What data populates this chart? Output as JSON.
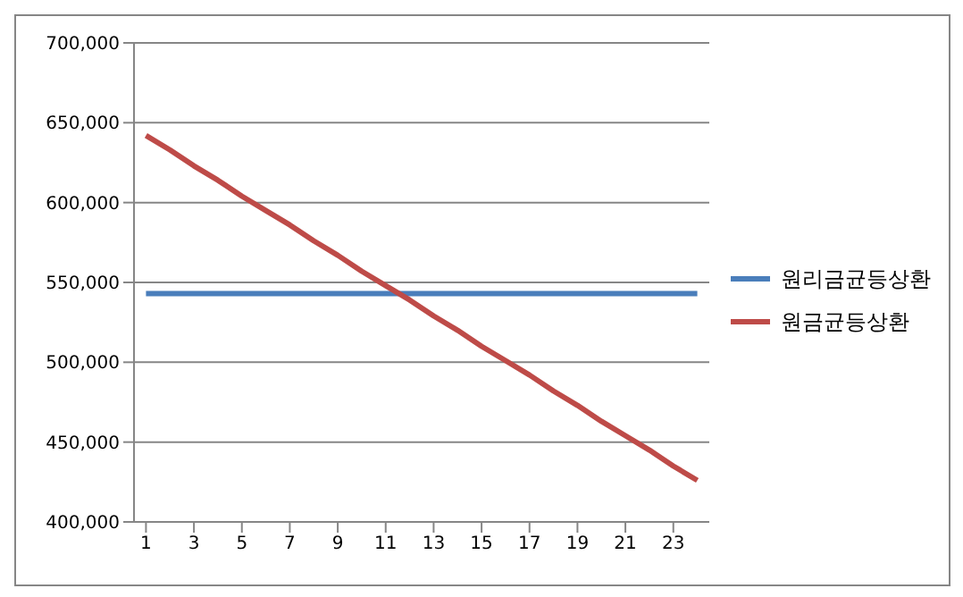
{
  "chart_data": {
    "type": "line",
    "x": [
      1,
      2,
      3,
      4,
      5,
      6,
      7,
      8,
      9,
      10,
      11,
      12,
      13,
      14,
      15,
      16,
      17,
      18,
      19,
      20,
      21,
      22,
      23,
      24
    ],
    "xlim": [
      0.5,
      24.5
    ],
    "xticks": [
      1,
      3,
      5,
      7,
      9,
      11,
      13,
      15,
      17,
      19,
      21,
      23
    ],
    "series": [
      {
        "name": "원리금균등상환",
        "color": "#4a7ebb",
        "values": [
          543000,
          543000,
          543000,
          543000,
          543000,
          543000,
          543000,
          543000,
          543000,
          543000,
          543000,
          543000,
          543000,
          543000,
          543000,
          543000,
          543000,
          543000,
          543000,
          543000,
          543000,
          543000,
          543000,
          543000
        ]
      },
      {
        "name": "원금균등상환",
        "color": "#be4b48",
        "values": [
          642000,
          633000,
          623000,
          614000,
          604000,
          595000,
          586000,
          576000,
          567000,
          557000,
          548000,
          539000,
          529000,
          520000,
          510000,
          501000,
          492000,
          482000,
          473000,
          463000,
          454000,
          445000,
          435000,
          426000
        ]
      }
    ],
    "ylim": [
      400000,
      700000
    ],
    "yticks": [
      {
        "value": 400000,
        "label": "400,000"
      },
      {
        "value": 450000,
        "label": "450,000"
      },
      {
        "value": 500000,
        "label": "500,000"
      },
      {
        "value": 550000,
        "label": "550,000"
      },
      {
        "value": 600000,
        "label": "600,000"
      },
      {
        "value": 650000,
        "label": "650,000"
      },
      {
        "value": 700000,
        "label": "700,000"
      }
    ],
    "grid": "y",
    "legend": "right",
    "marker": "none",
    "line_style": "solid"
  }
}
